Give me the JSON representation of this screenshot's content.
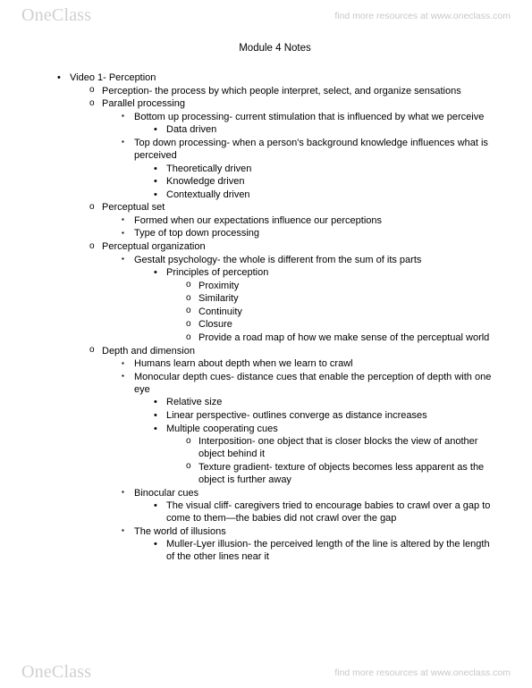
{
  "brand": "OneClass",
  "tagline": "find more resources at www.oneclass.com",
  "title": "Module 4 Notes",
  "outline": {
    "video1": {
      "heading": "Video 1- Perception",
      "perception_def": "Perception- the process by which people interpret, select, and organize sensations",
      "parallel": {
        "heading": "Parallel processing",
        "bottom_up": "Bottom up processing- current stimulation that is influenced by what we perceive",
        "bottom_up_sub": "Data driven",
        "top_down": "Top down processing- when a person's background knowledge influences what is perceived",
        "td_1": "Theoretically driven",
        "td_2": "Knowledge driven",
        "td_3": "Contextually driven"
      },
      "pset": {
        "heading": "Perceptual set",
        "s1": "Formed when our expectations influence our perceptions",
        "s2": "Type of top down processing"
      },
      "porg": {
        "heading": "Perceptual organization",
        "gestalt": "Gestalt psychology- the whole is different from the sum of its parts",
        "principles_heading": "Principles of perception",
        "p1": "Proximity",
        "p2": "Similarity",
        "p3": "Continuity",
        "p4": "Closure",
        "p5": "Provide a road map of how we make sense of the perceptual world"
      },
      "depth": {
        "heading": "Depth and dimension",
        "d1": "Humans learn about depth when we learn to crawl",
        "mono": "Monocular depth cues- distance cues that enable the perception of depth with one eye",
        "m1": "Relative size",
        "m2": "Linear perspective- outlines converge as distance increases",
        "m3": "Multiple cooperating cues",
        "m3a": "Interposition- one object that is closer blocks the view of another object behind it",
        "m3b": "Texture gradient- texture of objects becomes less apparent as the object is further away",
        "bino": "Binocular cues",
        "b1": "The visual cliff- caregivers tried to encourage babies to crawl over a gap to come to them—the babies did not crawl over the gap",
        "illusions": "The world of illusions",
        "i1": "Muller-Lyer illusion- the perceived length of the line is altered by the length of the other lines near it"
      }
    }
  }
}
